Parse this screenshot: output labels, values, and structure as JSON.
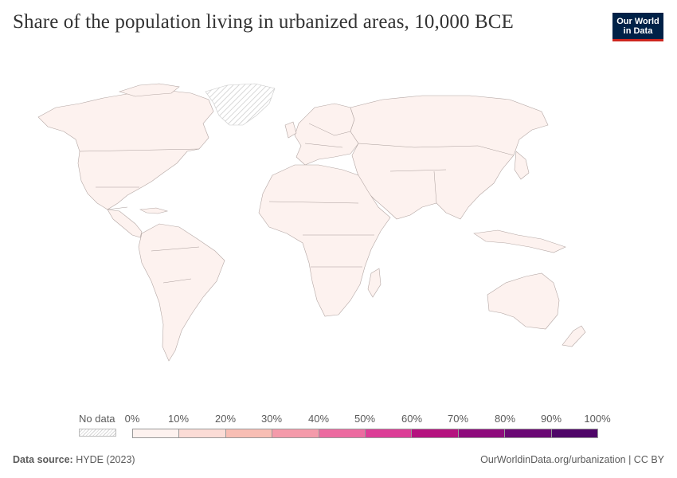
{
  "header": {
    "title": "Share of the population living in urbanized areas, 10,000 BCE",
    "logo_line1": "Our World",
    "logo_line2": "in Data"
  },
  "legend": {
    "no_data_label": "No data",
    "ticks": [
      "0%",
      "10%",
      "20%",
      "30%",
      "40%",
      "50%",
      "60%",
      "70%",
      "80%",
      "90%",
      "100%"
    ],
    "bin_colors": [
      "#fdf2ef",
      "#fbdcd6",
      "#f8beb4",
      "#f49aaa",
      "#ec6aa0",
      "#dc3c96",
      "#b5127f",
      "#8e0a7c",
      "#6a0774",
      "#4f0568"
    ],
    "bin_ranges": [
      [
        0,
        10
      ],
      [
        10,
        20
      ],
      [
        20,
        30
      ],
      [
        30,
        40
      ],
      [
        40,
        50
      ],
      [
        50,
        60
      ],
      [
        60,
        70
      ],
      [
        70,
        80
      ],
      [
        80,
        90
      ],
      [
        90,
        100
      ]
    ]
  },
  "map": {
    "fill_color": "#fdf2ef",
    "all_countries_value_bin": "0%–10%",
    "no_data_region": "Greenland"
  },
  "footer": {
    "source_label": "Data source:",
    "source_value": "HYDE (2023)",
    "url_and_license": "OurWorldinData.org/urbanization | CC BY"
  }
}
